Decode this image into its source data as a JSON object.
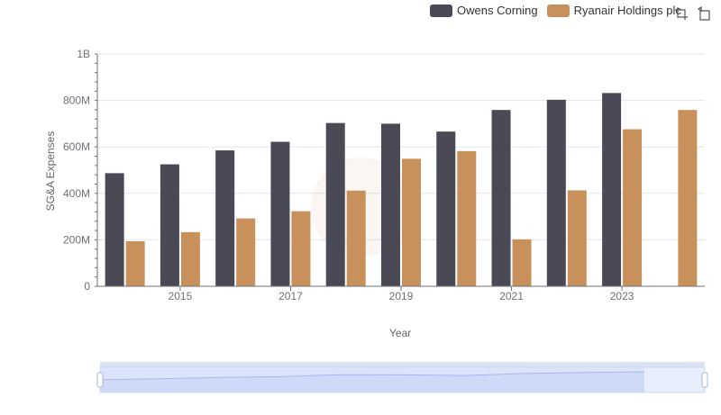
{
  "legend": {
    "items": [
      {
        "label": "Owens Corning",
        "color": "#4a4a56"
      },
      {
        "label": "Ryanair Holdings plc",
        "color": "#c8915b"
      }
    ]
  },
  "toolbox": {
    "icons": [
      "zoom-icon",
      "restore-icon"
    ]
  },
  "chart_data": {
    "type": "bar",
    "title": "",
    "xlabel": "Year",
    "ylabel": "SG&A Expenses",
    "categories": [
      "2014",
      "2015",
      "2016",
      "2017",
      "2018",
      "2019",
      "2020",
      "2021",
      "2022",
      "2023",
      "2024"
    ],
    "x_tick_labels": [
      "2015",
      "2017",
      "2019",
      "2021",
      "2023"
    ],
    "y_tick_labels": [
      "0",
      "200M",
      "400M",
      "600M",
      "800M",
      "1B"
    ],
    "ylim": [
      0,
      1000000000
    ],
    "grid": true,
    "legend_position": "top-right",
    "series": [
      {
        "name": "Owens Corning",
        "color": "#4a4a56",
        "values": [
          487000000,
          525000000,
          585000000,
          622000000,
          703000000,
          700000000,
          666000000,
          759000000,
          803000000,
          832000000,
          null
        ]
      },
      {
        "name": "Ryanair Holdings plc",
        "color": "#c8915b",
        "values": [
          194000000,
          233000000,
          292000000,
          323000000,
          412000000,
          549000000,
          582000000,
          202000000,
          413000000,
          676000000,
          759000000
        ]
      }
    ]
  }
}
